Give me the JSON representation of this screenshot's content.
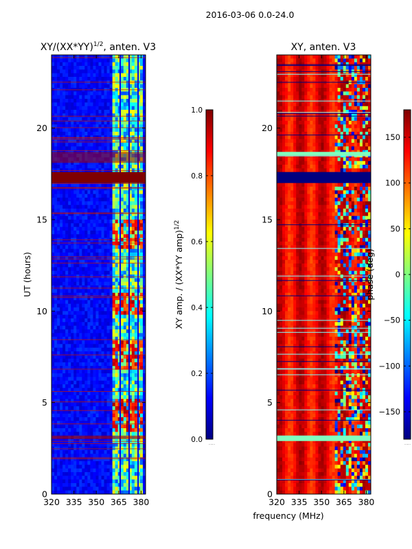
{
  "suptitle": "2016-03-06 0.0-24.0",
  "xlabel_shared": "frequency (MHz)",
  "colormap": [
    "#00007f",
    "#0000ff",
    "#007fff",
    "#00ffff",
    "#7fff7f",
    "#ffff00",
    "#ff7f00",
    "#ff0000",
    "#7f0000"
  ],
  "chart_data": [
    {
      "type": "heatmap",
      "title": "XY/(XX*YY)",
      "title_exp": "1/2",
      "title_suffix": ", anten. V3",
      "xlabel": "",
      "ylabel": "UT (hours)",
      "xlim": [
        320,
        383
      ],
      "ylim": [
        0,
        24
      ],
      "xticks": [
        "320",
        "335",
        "350",
        "365",
        "380"
      ],
      "yticks": [
        "0",
        "5",
        "10",
        "15",
        "20"
      ],
      "colorbar": {
        "label": "XY amp. / (XX*YY amp)",
        "label_exp": "1/2",
        "range": [
          0.0,
          1.0
        ],
        "ticks": [
          "0.0",
          "0.2",
          "0.4",
          "0.6",
          "0.8",
          "1.0"
        ]
      },
      "saturated_bands_hours": [
        [
          17.0,
          17.6
        ],
        [
          3.0,
          3.2
        ],
        [
          18.1,
          18.7
        ]
      ],
      "high_response_freq_range_mhz": [
        360,
        381
      ]
    },
    {
      "type": "heatmap",
      "title": "XY, anten. V3",
      "title_exp": "",
      "title_suffix": "",
      "xlabel": "",
      "ylabel": "",
      "xlim": [
        320,
        383
      ],
      "ylim": [
        0,
        24
      ],
      "xticks": [
        "320",
        "335",
        "350",
        "365",
        "380"
      ],
      "yticks": [
        "0",
        "5",
        "10",
        "15",
        "20"
      ],
      "colorbar": {
        "label": "phase (deg)",
        "label_exp": "",
        "range": [
          -180,
          180
        ],
        "ticks": [
          "−150",
          "−100",
          "−50",
          "0",
          "50",
          "100",
          "150"
        ]
      },
      "dominant_phase_deg": 140,
      "disturbed_freq_range_mhz": [
        358,
        383
      ]
    }
  ]
}
